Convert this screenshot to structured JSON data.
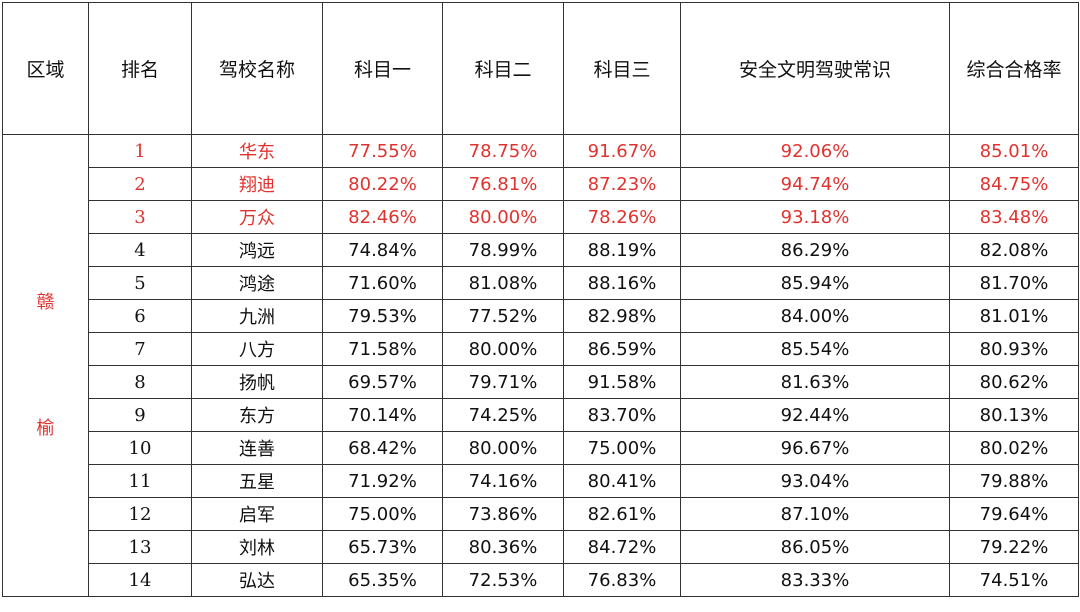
{
  "headers": [
    "区域",
    "排名",
    "驾校名称",
    "科目一",
    "科目二",
    "科目三",
    "安全文明驾驶常识",
    "综合合格率"
  ],
  "region": [
    "赣",
    "榆"
  ],
  "highlight_color": "#e0332f",
  "rows": [
    {
      "rank": "1",
      "name": "华东",
      "s1": "77.55%",
      "s2": "78.75%",
      "s3": "91.67%",
      "safety": "92.06%",
      "overall": "85.01%",
      "top": true
    },
    {
      "rank": "2",
      "name": "翔迪",
      "s1": "80.22%",
      "s2": "76.81%",
      "s3": "87.23%",
      "safety": "94.74%",
      "overall": "84.75%",
      "top": true
    },
    {
      "rank": "3",
      "name": "万众",
      "s1": "82.46%",
      "s2": "80.00%",
      "s3": "78.26%",
      "safety": "93.18%",
      "overall": "83.48%",
      "top": true
    },
    {
      "rank": "4",
      "name": "鸿远",
      "s1": "74.84%",
      "s2": "78.99%",
      "s3": "88.19%",
      "safety": "86.29%",
      "overall": "82.08%",
      "top": false
    },
    {
      "rank": "5",
      "name": "鸿途",
      "s1": "71.60%",
      "s2": "81.08%",
      "s3": "88.16%",
      "safety": "85.94%",
      "overall": "81.70%",
      "top": false
    },
    {
      "rank": "6",
      "name": "九洲",
      "s1": "79.53%",
      "s2": "77.52%",
      "s3": "82.98%",
      "safety": "84.00%",
      "overall": "81.01%",
      "top": false
    },
    {
      "rank": "7",
      "name": "八方",
      "s1": "71.58%",
      "s2": "80.00%",
      "s3": "86.59%",
      "safety": "85.54%",
      "overall": "80.93%",
      "top": false
    },
    {
      "rank": "8",
      "name": "扬帆",
      "s1": "69.57%",
      "s2": "79.71%",
      "s3": "91.58%",
      "safety": "81.63%",
      "overall": "80.62%",
      "top": false
    },
    {
      "rank": "9",
      "name": "东方",
      "s1": "70.14%",
      "s2": "74.25%",
      "s3": "83.70%",
      "safety": "92.44%",
      "overall": "80.13%",
      "top": false
    },
    {
      "rank": "10",
      "name": "连善",
      "s1": "68.42%",
      "s2": "80.00%",
      "s3": "75.00%",
      "safety": "96.67%",
      "overall": "80.02%",
      "top": false
    },
    {
      "rank": "11",
      "name": "五星",
      "s1": "71.92%",
      "s2": "74.16%",
      "s3": "80.41%",
      "safety": "93.04%",
      "overall": "79.88%",
      "top": false
    },
    {
      "rank": "12",
      "name": "启军",
      "s1": "75.00%",
      "s2": "73.86%",
      "s3": "82.61%",
      "safety": "87.10%",
      "overall": "79.64%",
      "top": false
    },
    {
      "rank": "13",
      "name": "刘林",
      "s1": "65.73%",
      "s2": "80.36%",
      "s3": "84.72%",
      "safety": "86.05%",
      "overall": "79.22%",
      "top": false
    },
    {
      "rank": "14",
      "name": "弘达",
      "s1": "65.35%",
      "s2": "72.53%",
      "s3": "76.83%",
      "safety": "83.33%",
      "overall": "74.51%",
      "top": false
    }
  ]
}
